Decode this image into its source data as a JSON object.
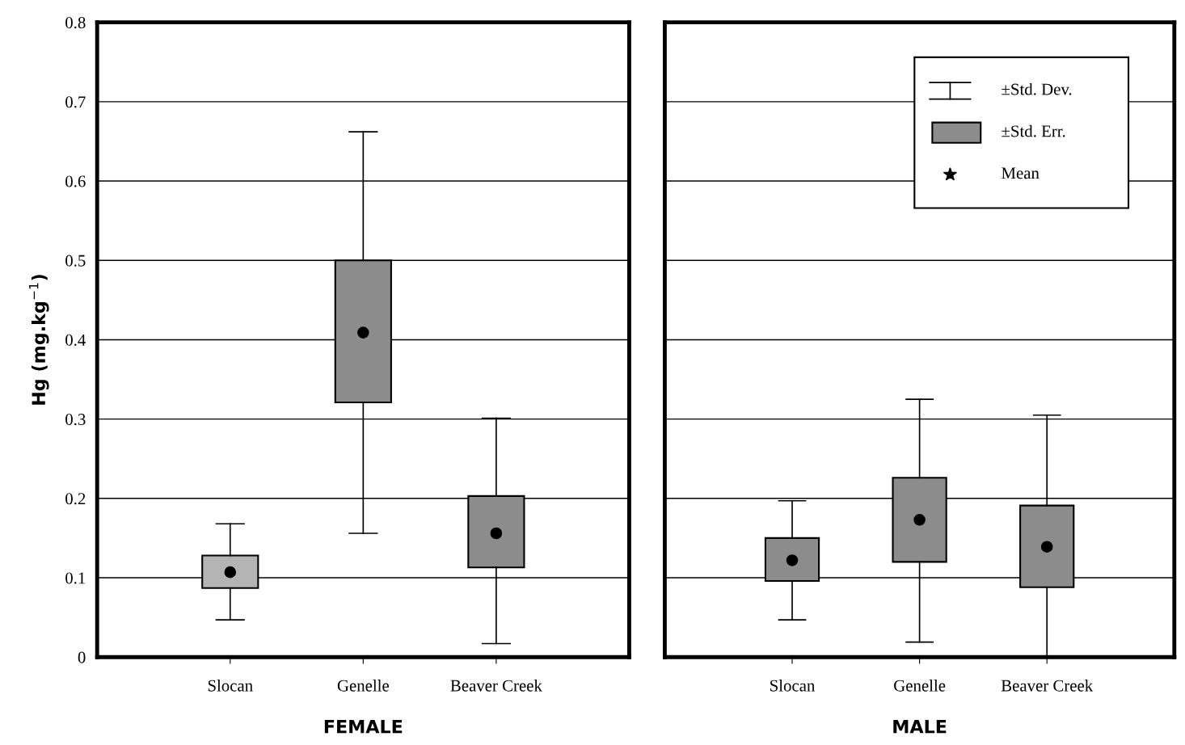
{
  "chart_data": [
    {
      "type": "box",
      "xlabel": "FEMALE",
      "ylabel": "Hg (mg.kg$^{−1}$)",
      "categories": [
        "Slocan",
        "Genelle",
        "Beaver Creek"
      ],
      "boxes": [
        {
          "low": 0.047,
          "q1": 0.087,
          "q3": 0.128,
          "high": 0.168,
          "mean": 0.107
        },
        {
          "low": 0.156,
          "q1": 0.321,
          "q3": 0.5,
          "high": 0.662,
          "mean": 0.409
        },
        {
          "low": 0.017,
          "q1": 0.113,
          "q3": 0.203,
          "high": 0.301,
          "mean": 0.156
        }
      ],
      "colors": [
        "#b4b4b4",
        "#8c8c8c",
        "#8c8c8c"
      ],
      "ylim": [
        0,
        0.8
      ],
      "yticks": [
        0,
        0.1,
        0.2,
        0.3,
        0.4,
        0.5,
        0.6,
        0.7,
        0.8
      ],
      "grid": "y"
    },
    {
      "type": "box",
      "xlabel": "MALE",
      "categories": [
        "Slocan",
        "Genelle",
        "Beaver Creek"
      ],
      "boxes": [
        {
          "low": 0.047,
          "q1": 0.096,
          "q3": 0.15,
          "high": 0.197,
          "mean": 0.122
        },
        {
          "low": 0.019,
          "q1": 0.12,
          "q3": 0.226,
          "high": 0.325,
          "mean": 0.173
        },
        {
          "low": 0,
          "q1": 0.088,
          "q3": 0.191,
          "high": 0.305,
          "mean": 0.139
        }
      ],
      "colors": [
        "#8c8c8c",
        "#8c8c8c",
        "#8c8c8c"
      ],
      "ylim": [
        0,
        0.8
      ],
      "yticks": [
        0,
        0.1,
        0.2,
        0.3,
        0.4,
        0.5,
        0.6,
        0.7,
        0.8
      ],
      "grid": "y",
      "tick_labels": "x",
      "annotations": [
        "±Std. Dev.",
        "±Std. Err.",
        "Mean"
      ]
    }
  ]
}
